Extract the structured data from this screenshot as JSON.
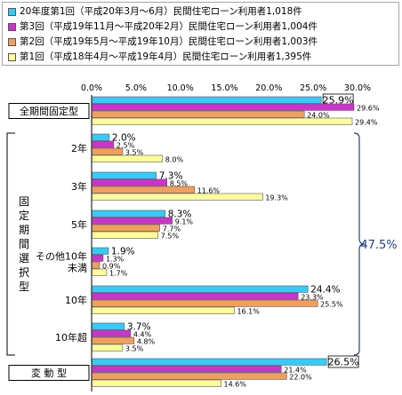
{
  "chart_data": {
    "type": "bar",
    "orientation": "horizontal",
    "xlim": [
      0,
      30
    ],
    "x_ticks": [
      "0.0%",
      "5.0%",
      "10.0%",
      "15.0%",
      "20.0%",
      "25.0%",
      "30.0%"
    ],
    "legend_placement": "top",
    "series": [
      {
        "name": "20年度第1回（平成20年3月～6月）民間住宅ローン利用者1,018件",
        "color": "#33ccff"
      },
      {
        "name": "第3回（平成19年11月～平成20年2月）民間住宅ローン利用者1,004件",
        "color": "#cc33cc"
      },
      {
        "name": "第2回（平成19年5月～平成19年10月）民間住宅ローン利用者1,003件",
        "color": "#f29f5c"
      },
      {
        "name": "第1回（平成18年4月～平成19年4月）民間住宅ローン利用者1,395件",
        "color": "#ffff99"
      }
    ],
    "groups": [
      {
        "label": "全期間固定型",
        "boxed": true,
        "values": [
          25.9,
          29.6,
          24.0,
          29.4
        ],
        "labels": [
          "25.9%",
          "29.6%",
          "24.0%",
          "29.4%"
        ]
      },
      {
        "label": "2年",
        "values": [
          2.0,
          2.5,
          3.5,
          8.0
        ],
        "labels": [
          "2.0%",
          "2.5%",
          "3.5%",
          "8.0%"
        ]
      },
      {
        "label": "3年",
        "values": [
          7.3,
          8.5,
          11.6,
          19.3
        ],
        "labels": [
          "7.3%",
          "8.5%",
          "11.6%",
          "19.3%"
        ]
      },
      {
        "label": "5年",
        "values": [
          8.3,
          9.1,
          7.7,
          7.5
        ],
        "labels": [
          "8.3%",
          "9.1%",
          "7.7%",
          "7.5%"
        ]
      },
      {
        "label": "その他10年\n未満",
        "values": [
          1.9,
          1.3,
          0.9,
          1.7
        ],
        "labels": [
          "1.9%",
          "1.3%",
          "0.9%",
          "1.7%"
        ]
      },
      {
        "label": "10年",
        "values": [
          24.4,
          23.3,
          25.5,
          16.1
        ],
        "labels": [
          "24.4%",
          "23.3%",
          "25.5%",
          "16.1%"
        ]
      },
      {
        "label": "10年超",
        "values": [
          3.7,
          4.4,
          4.8,
          3.5
        ],
        "labels": [
          "3.7%",
          "4.4%",
          "4.8%",
          "3.5%"
        ]
      },
      {
        "label": "変 動 型",
        "boxed": true,
        "values": [
          26.5,
          21.4,
          22.0,
          14.6
        ],
        "labels": [
          "26.5%",
          "21.4%",
          "22.0%",
          "14.6%"
        ]
      }
    ],
    "bracket_label": "固定期間選択型",
    "bracket_total": "47.5%",
    "grid": false
  }
}
